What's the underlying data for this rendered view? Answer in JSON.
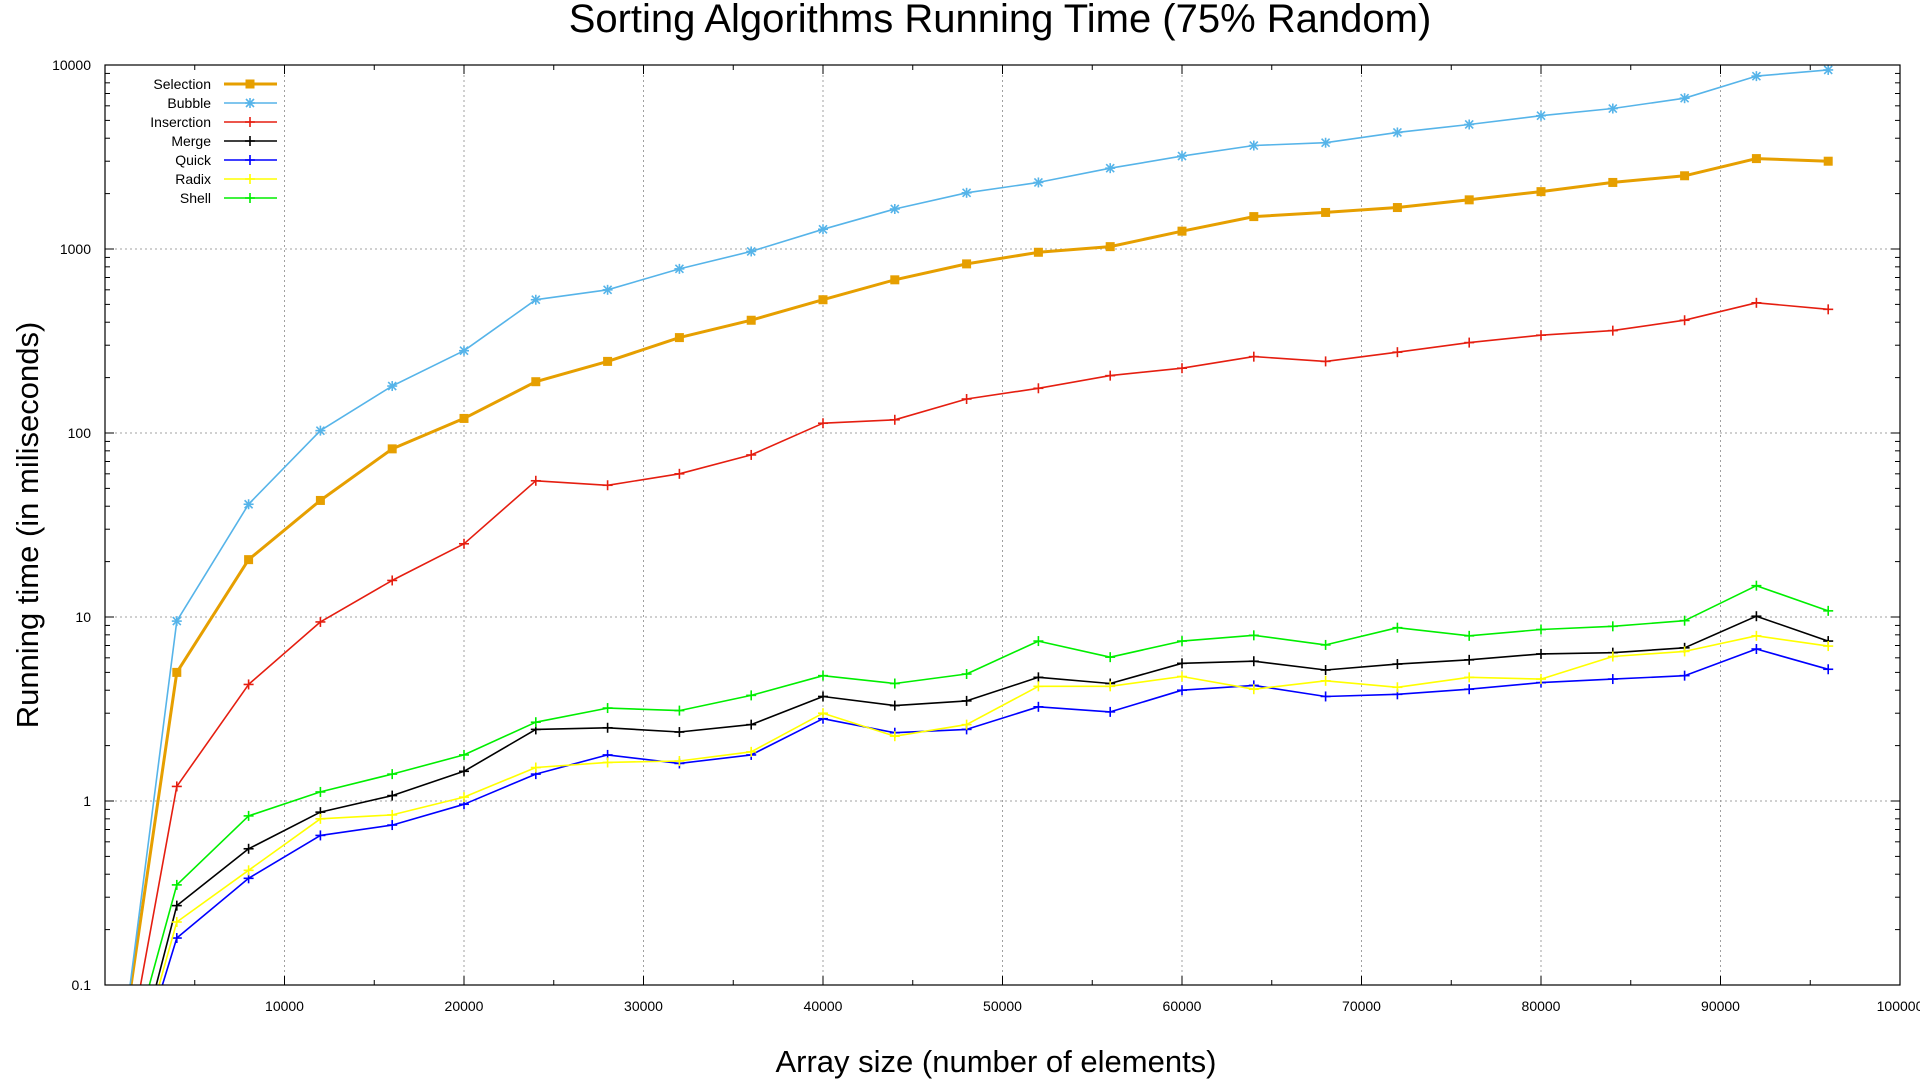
{
  "chart_data": {
    "type": "line",
    "title": "Sorting Algorithms Running Time (75% Random)",
    "xlabel": "Array size (number of elements)",
    "ylabel": "Running time (in miliseconds)",
    "xlim": [
      0,
      100000
    ],
    "ylim": [
      0.1,
      10000
    ],
    "yscale": "log",
    "grid": true,
    "legend_position": "top-left",
    "x_ticks": [
      "10000",
      "20000",
      "30000",
      "40000",
      "50000",
      "60000",
      "70000",
      "80000",
      "90000",
      "100000"
    ],
    "y_ticks": [
      "0.1",
      "1",
      "10",
      "100",
      "1000",
      "10000"
    ],
    "x": [
      1000,
      4000,
      8000,
      12000,
      16000,
      20000,
      24000,
      28000,
      32000,
      36000,
      40000,
      44000,
      48000,
      52000,
      56000,
      60000,
      64000,
      68000,
      72000,
      76000,
      80000,
      84000,
      88000,
      92000,
      96000
    ],
    "series": [
      {
        "name": "Selection",
        "color": "#e69f00",
        "marker": "square",
        "values": [
          0.05,
          5.0,
          20.5,
          43,
          82,
          120,
          190,
          245,
          330,
          410,
          530,
          680,
          830,
          960,
          1030,
          1250,
          1500,
          1580,
          1680,
          1850,
          2050,
          2300,
          2500,
          3100,
          3000
        ]
      },
      {
        "name": "Bubble",
        "color": "#56b4e9",
        "marker": "asterisk",
        "values": [
          0.05,
          9.5,
          41,
          103,
          180,
          280,
          530,
          600,
          780,
          970,
          1280,
          1650,
          2020,
          2300,
          2750,
          3200,
          3650,
          3780,
          4300,
          4750,
          5300,
          5800,
          6600,
          8700,
          9400
        ]
      },
      {
        "name": "Inserction",
        "color": "#e51e10",
        "marker": "plus",
        "values": [
          0.03,
          1.2,
          4.3,
          9.4,
          15.8,
          25,
          55,
          52,
          60,
          76,
          113,
          118,
          153,
          175,
          205,
          225,
          260,
          245,
          275,
          310,
          340,
          360,
          410,
          510,
          470
        ]
      },
      {
        "name": "Merge",
        "color": "#000000",
        "marker": "plus",
        "values": [
          0.02,
          0.27,
          0.55,
          0.87,
          1.07,
          1.45,
          2.45,
          2.5,
          2.37,
          2.6,
          3.7,
          3.3,
          3.5,
          4.7,
          4.35,
          5.6,
          5.75,
          5.15,
          5.55,
          5.85,
          6.3,
          6.4,
          6.8,
          10.1,
          7.4
        ]
      },
      {
        "name": "Quick",
        "color": "#0000ff",
        "marker": "plus",
        "values": [
          0.02,
          0.18,
          0.38,
          0.65,
          0.74,
          0.96,
          1.4,
          1.78,
          1.6,
          1.78,
          2.8,
          2.35,
          2.45,
          3.25,
          3.05,
          4.0,
          4.25,
          3.7,
          3.8,
          4.05,
          4.4,
          4.6,
          4.8,
          6.7,
          5.2
        ]
      },
      {
        "name": "Radix",
        "color": "#ffff00",
        "marker": "plus",
        "values": [
          0.02,
          0.22,
          0.42,
          0.8,
          0.84,
          1.05,
          1.52,
          1.62,
          1.65,
          1.85,
          3.0,
          2.25,
          2.6,
          4.2,
          4.2,
          4.75,
          4.05,
          4.5,
          4.15,
          4.7,
          4.6,
          6.1,
          6.5,
          7.9,
          6.95
        ]
      },
      {
        "name": "Shell",
        "color": "#00ee00",
        "marker": "plus",
        "values": [
          0.03,
          0.35,
          0.83,
          1.12,
          1.4,
          1.78,
          2.68,
          3.2,
          3.1,
          3.75,
          4.8,
          4.35,
          4.9,
          7.4,
          6.05,
          7.4,
          7.95,
          7.05,
          8.75,
          7.9,
          8.55,
          8.9,
          9.55,
          14.8,
          10.8
        ]
      }
    ]
  }
}
